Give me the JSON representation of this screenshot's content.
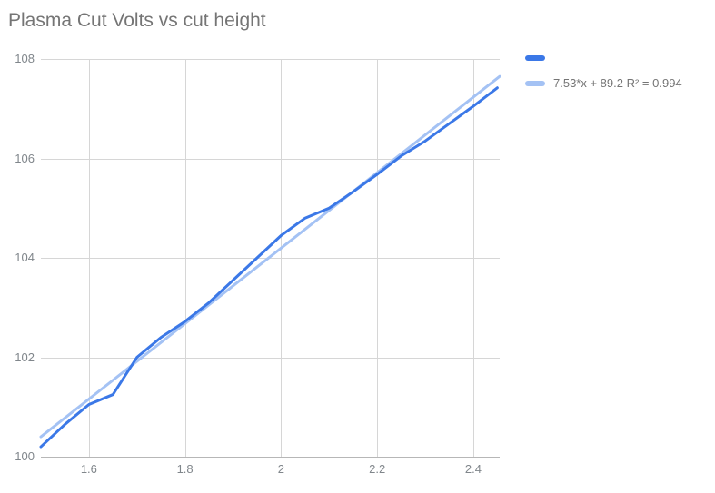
{
  "chart": {
    "title": "Plasma Cut Volts vs cut height"
  },
  "legend": {
    "items": [
      {
        "label": "",
        "color": "#3b78e7"
      },
      {
        "label": "7.53*x + 89.2 R² = 0.994",
        "color": "#a4c2f4"
      }
    ]
  },
  "chart_data": {
    "type": "line",
    "title": "Plasma Cut Volts vs cut height",
    "xlabel": "",
    "ylabel": "",
    "xlim": [
      1.5,
      2.455
    ],
    "ylim": [
      100,
      108
    ],
    "grid": true,
    "legend_position": "right-top",
    "x": [
      1.5,
      1.55,
      1.6,
      1.65,
      1.7,
      1.75,
      1.8,
      1.85,
      1.9,
      1.95,
      2.0,
      2.05,
      2.1,
      2.15,
      2.2,
      2.25,
      2.3,
      2.35,
      2.4,
      2.45
    ],
    "series": [
      {
        "name": "",
        "color": "#3b78e7",
        "values": [
          100.2,
          100.65,
          101.05,
          101.25,
          102.0,
          102.4,
          102.72,
          103.1,
          103.55,
          104.0,
          104.45,
          104.8,
          105.0,
          105.33,
          105.68,
          106.05,
          106.35,
          106.7,
          107.05,
          107.42
        ]
      }
    ],
    "trendline": {
      "label": "7.53*x + 89.2 R² = 0.994",
      "color": "#a4c2f4",
      "slope": 7.53,
      "intercept": 89.2,
      "r2": 0.994,
      "draw_x": [
        1.5,
        2.455
      ],
      "draw_y": [
        100.4,
        107.65
      ]
    },
    "x_ticks": [
      {
        "v": 1.6,
        "label": "1.6"
      },
      {
        "v": 1.8,
        "label": "1.8"
      },
      {
        "v": 2.0,
        "label": "2"
      },
      {
        "v": 2.2,
        "label": "2.2"
      },
      {
        "v": 2.4,
        "label": "2.4"
      }
    ],
    "y_ticks": [
      {
        "v": 100,
        "label": "100"
      },
      {
        "v": 102,
        "label": "102"
      },
      {
        "v": 104,
        "label": "104"
      },
      {
        "v": 106,
        "label": "106"
      },
      {
        "v": 108,
        "label": "108"
      }
    ],
    "colors": {
      "gridline": "#d6d6d6",
      "axis_line": "#b7b7b7",
      "tick_text": "#80868b",
      "title_text": "#757575",
      "legend_text": "#757575"
    }
  }
}
